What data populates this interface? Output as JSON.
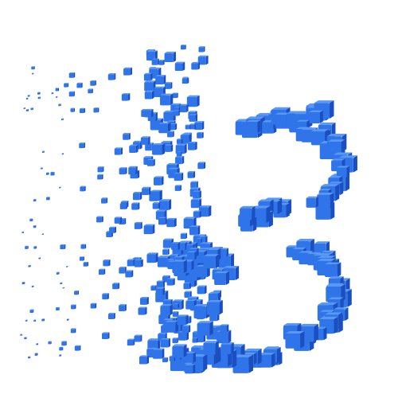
{
  "image": {
    "subject": "voxel-cubes",
    "background_color": "#ffffff",
    "colors": {
      "cube_front": "#2f74e8",
      "cube_top": "#5a98f5",
      "cube_side": "#1b4fc0",
      "cube_shadow": "#123a99"
    }
  }
}
